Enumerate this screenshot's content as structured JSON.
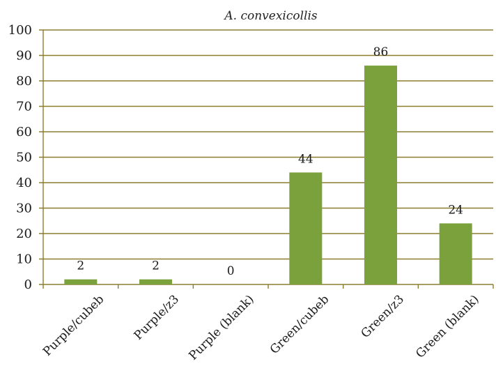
{
  "chart_data": {
    "type": "bar",
    "title": "A. convexicollis",
    "categories": [
      "Purple/cubeb",
      "Purple/z3",
      "Purple (blank)",
      "Green/cubeb",
      "Green/z3",
      "Green (blank)"
    ],
    "values": [
      2,
      2,
      0,
      44,
      86,
      24
    ],
    "data_labels": [
      "2",
      "2",
      "0",
      "44",
      "86",
      "24"
    ],
    "ylim": [
      0,
      100
    ],
    "yticks": [
      0,
      10,
      20,
      30,
      40,
      50,
      60,
      70,
      80,
      90,
      100
    ],
    "grid": true,
    "legend": "none",
    "colors": {
      "bar": "#7aa13c",
      "grid": "#8b7d2e",
      "axis": "#8b7d2e"
    }
  }
}
